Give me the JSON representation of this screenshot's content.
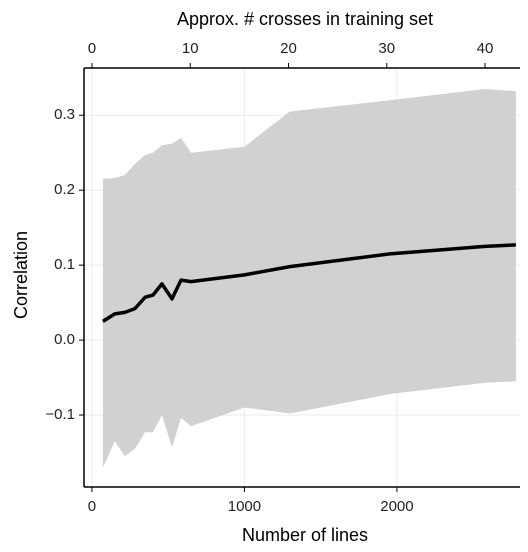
{
  "chart_data": {
    "type": "line",
    "x_label": "Number of lines",
    "x2_label": "Approx. # crosses in training set",
    "y_label": "Correlation",
    "x": [
      72,
      150,
      216,
      282,
      348,
      400,
      459,
      525,
      584,
      649,
      1000,
      1298,
      1954,
      2577,
      2780
    ],
    "series": [
      {
        "color": "#000000",
        "values": [
          0.025,
          0.035,
          0.037,
          0.042,
          0.057,
          0.06,
          0.075,
          0.055,
          0.08,
          0.078,
          0.087,
          0.098,
          0.115,
          0.125,
          0.127
        ]
      }
    ],
    "band": {
      "color": "#d0d1d1",
      "upper": [
        0.215,
        0.216,
        0.22,
        0.235,
        0.247,
        0.25,
        0.26,
        0.262,
        0.27,
        0.25,
        0.258,
        0.305,
        0.32,
        0.335,
        0.332
      ],
      "lower": [
        -0.17,
        -0.135,
        -0.155,
        -0.145,
        -0.123,
        -0.123,
        -0.1,
        -0.143,
        -0.104,
        -0.115,
        -0.09,
        -0.098,
        -0.072,
        -0.057,
        -0.055
      ]
    },
    "xlim": [
      -52,
      2807
    ],
    "xticks": [
      0,
      1000,
      2000
    ],
    "x2lim": [
      -0.81,
      43.56
    ],
    "x2ticks": [
      0,
      10,
      20,
      30,
      40
    ],
    "ylim": [
      -0.196,
      0.363
    ],
    "yticks": [
      {
        "value": -0.1,
        "label": "−0.1"
      },
      {
        "value": 0,
        "label": "0.0"
      },
      {
        "value": 0.1,
        "label": "0.1"
      },
      {
        "value": 0.2,
        "label": "0.2"
      },
      {
        "value": 0.3,
        "label": "0.3"
      }
    ],
    "grid": true
  }
}
